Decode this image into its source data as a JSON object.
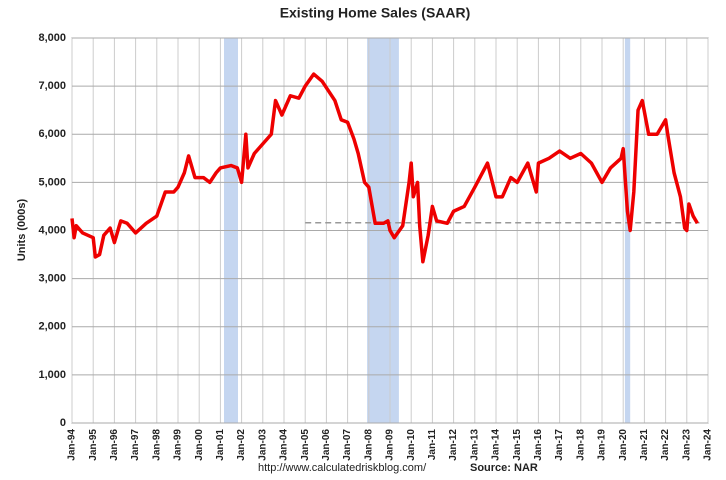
{
  "chart_data": {
    "type": "line",
    "title": "Existing Home Sales (SAAR)",
    "ylabel": "Units (000s)",
    "annotations": [
      "http://www.calculatedriskblog.com/",
      "Source: NAR"
    ],
    "xlim": [
      1994,
      2024
    ],
    "xticks": [
      {
        "value": 1994,
        "label": "Jan-94"
      },
      {
        "value": 1995,
        "label": "Jan-95"
      },
      {
        "value": 1996,
        "label": "Jan-96"
      },
      {
        "value": 1997,
        "label": "Jan-97"
      },
      {
        "value": 1998,
        "label": "Jan-98"
      },
      {
        "value": 1999,
        "label": "Jan-99"
      },
      {
        "value": 2000,
        "label": "Jan-00"
      },
      {
        "value": 2001,
        "label": "Jan-01"
      },
      {
        "value": 2002,
        "label": "Jan-02"
      },
      {
        "value": 2003,
        "label": "Jan-03"
      },
      {
        "value": 2004,
        "label": "Jan-04"
      },
      {
        "value": 2005,
        "label": "Jan-05"
      },
      {
        "value": 2006,
        "label": "Jan-06"
      },
      {
        "value": 2007,
        "label": "Jan-07"
      },
      {
        "value": 2008,
        "label": "Jan-08"
      },
      {
        "value": 2009,
        "label": "Jan-09"
      },
      {
        "value": 2010,
        "label": "Jan-10"
      },
      {
        "value": 2011,
        "label": "Jan-11"
      },
      {
        "value": 2012,
        "label": "Jan-12"
      },
      {
        "value": 2013,
        "label": "Jan-13"
      },
      {
        "value": 2014,
        "label": "Jan-14"
      },
      {
        "value": 2015,
        "label": "Jan-15"
      },
      {
        "value": 2016,
        "label": "Jan-16"
      },
      {
        "value": 2017,
        "label": "Jan-17"
      },
      {
        "value": 2018,
        "label": "Jan-18"
      },
      {
        "value": 2019,
        "label": "Jan-19"
      },
      {
        "value": 2020,
        "label": "Jan-20"
      },
      {
        "value": 2021,
        "label": "Jan-21"
      },
      {
        "value": 2022,
        "label": "Jan-22"
      },
      {
        "value": 2023,
        "label": "Jan-23"
      },
      {
        "value": 2024,
        "label": "Jan-24"
      }
    ],
    "ylim": [
      0,
      8000
    ],
    "yticks": [
      0,
      {
        "value": 1000,
        "label": "1,000"
      },
      {
        "value": 2000,
        "label": "2,000"
      },
      {
        "value": 3000,
        "label": "3,000"
      },
      {
        "value": 4000,
        "label": "4,000"
      },
      {
        "value": 5000,
        "label": "5,000"
      },
      {
        "value": 6000,
        "label": "6,000"
      },
      {
        "value": 7000,
        "label": "7,000"
      },
      {
        "value": 8000,
        "label": "8,000"
      }
    ],
    "grid": true,
    "recessions": [
      [
        2001.17,
        2001.83
      ],
      [
        2007.92,
        2009.42
      ],
      [
        2020.08,
        2020.33
      ]
    ],
    "recession_color": "#c5d6f0",
    "reference_line": {
      "value": 4160,
      "x": [
        2005,
        2023.6
      ],
      "color": "#999999"
    },
    "x": [
      1994.0,
      1994.1,
      1994.2,
      1994.5,
      1995.0,
      1995.1,
      1995.3,
      1995.5,
      1995.8,
      1996.0,
      1996.3,
      1996.6,
      1997.0,
      1997.5,
      1998.0,
      1998.4,
      1998.8,
      1999.0,
      1999.3,
      1999.5,
      1999.8,
      2000.2,
      2000.5,
      2000.8,
      2001.0,
      2001.5,
      2001.8,
      2002.0,
      2002.2,
      2002.3,
      2002.6,
      2003.0,
      2003.4,
      2003.6,
      2003.9,
      2004.3,
      2004.7,
      2005.0,
      2005.4,
      2005.8,
      2006.1,
      2006.4,
      2006.7,
      2007.0,
      2007.3,
      2007.5,
      2007.8,
      2008.0,
      2008.3,
      2008.7,
      2008.9,
      2009.0,
      2009.2,
      2009.6,
      2009.9,
      2010.0,
      2010.1,
      2010.3,
      2010.4,
      2010.55,
      2010.8,
      2011.0,
      2011.2,
      2011.7,
      2012.0,
      2012.5,
      2013.0,
      2013.6,
      2014.0,
      2014.3,
      2014.7,
      2015.0,
      2015.5,
      2015.9,
      2016.0,
      2016.5,
      2017.0,
      2017.5,
      2018.0,
      2018.5,
      2019.0,
      2019.4,
      2019.9,
      2020.0,
      2020.2,
      2020.33,
      2020.5,
      2020.7,
      2020.9,
      2021.2,
      2021.6,
      2022.0,
      2022.1,
      2022.4,
      2022.7,
      2022.9,
      2023.0,
      2023.1,
      2023.3,
      2023.5
    ],
    "series": [
      {
        "name": "Existing Home Sales",
        "color": "#ee0000",
        "values": [
          4250,
          3850,
          4100,
          3950,
          3850,
          3450,
          3500,
          3900,
          4050,
          3750,
          4200,
          4150,
          3950,
          4150,
          4300,
          4800,
          4800,
          4900,
          5200,
          5550,
          5100,
          5100,
          5000,
          5200,
          5300,
          5350,
          5300,
          5000,
          6000,
          5300,
          5600,
          5800,
          6000,
          6700,
          6400,
          6800,
          6750,
          7000,
          7250,
          7100,
          6900,
          6700,
          6300,
          6250,
          5900,
          5600,
          5000,
          4900,
          4150,
          4150,
          4200,
          4000,
          3850,
          4100,
          5000,
          5400,
          4700,
          5000,
          4100,
          3350,
          3900,
          4500,
          4200,
          4150,
          4400,
          4500,
          4900,
          5400,
          4700,
          4700,
          5100,
          5000,
          5400,
          4800,
          5400,
          5500,
          5650,
          5500,
          5600,
          5400,
          5000,
          5300,
          5500,
          5700,
          4400,
          4000,
          4800,
          6500,
          6700,
          6000,
          6000,
          6300,
          6000,
          5200,
          4700,
          4050,
          4000,
          4550,
          4300,
          4150
        ]
      }
    ]
  }
}
